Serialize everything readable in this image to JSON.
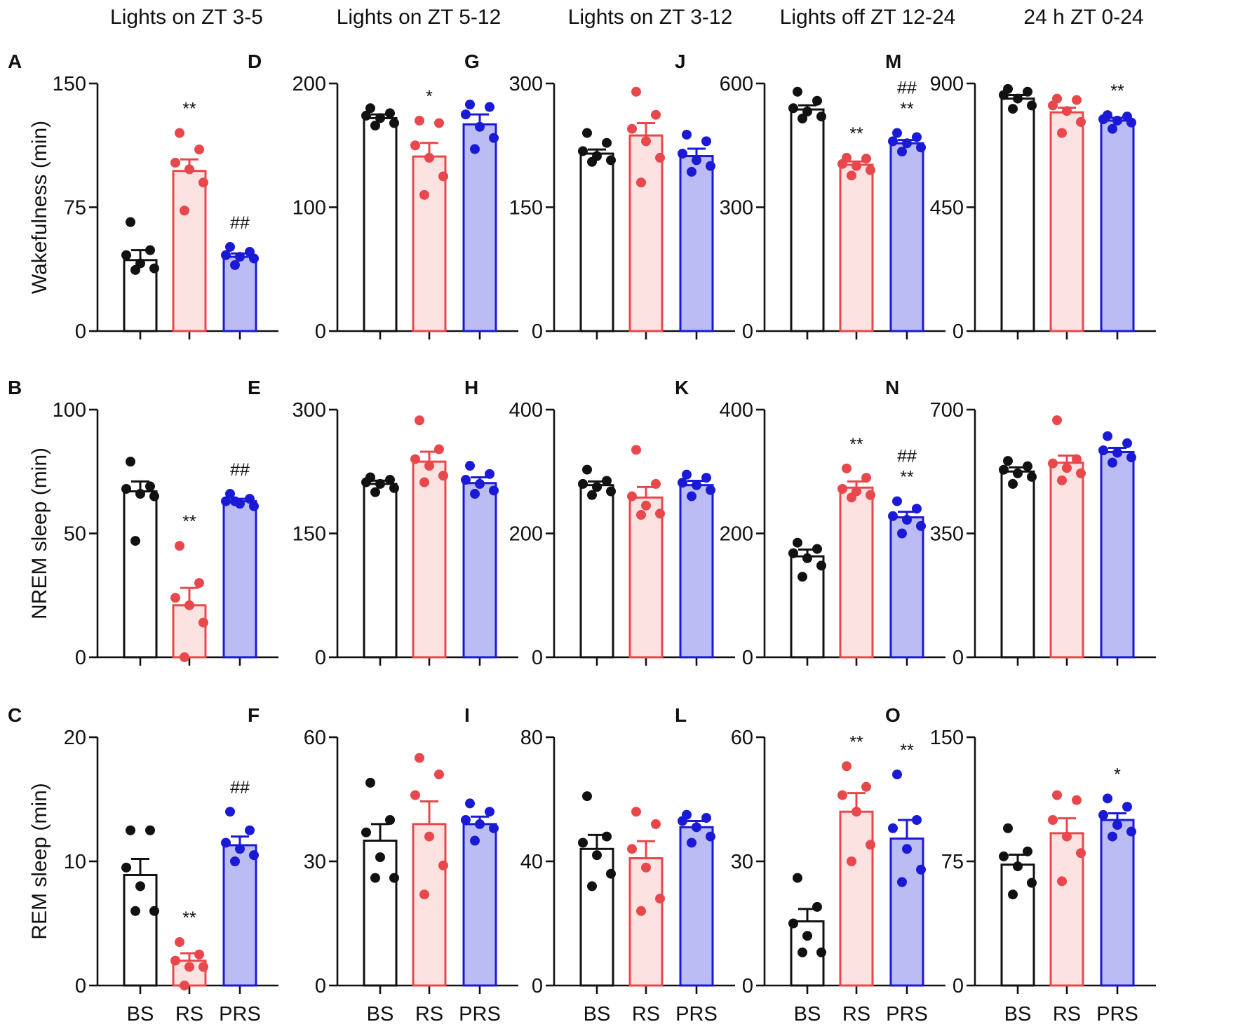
{
  "colors": {
    "BS": "#111111",
    "RS": "#e8474c",
    "PRS": "#1a1ad6"
  },
  "fills": {
    "BS": "#ffffff",
    "RS": "#fde2e2",
    "PRS": "#bcbcf4"
  },
  "chart_data": {
    "type": "bar",
    "categories": [
      "BS",
      "RS",
      "PRS"
    ],
    "column_titles": [
      "Lights on ZT 3-5",
      "Lights on ZT 5-12",
      "Lights on ZT 3-12",
      "Lights off ZT 12-24",
      "24 h ZT 0-24"
    ],
    "row_ylabels": [
      "Wakefulness (min)",
      "NREM sleep (min)",
      "REM sleep (min)"
    ],
    "panels": [
      {
        "letter": "A",
        "ylim": [
          0,
          150
        ],
        "yticks": [
          "0",
          "75",
          "150"
        ],
        "bars": [
          {
            "group": "BS",
            "mean": 43,
            "sem": 6,
            "points": [
              66,
              49,
              46,
              41,
              38,
              37
            ],
            "sig": []
          },
          {
            "group": "RS",
            "mean": 97,
            "sem": 7,
            "points": [
              120,
              110,
              102,
              98,
              90,
              73
            ],
            "sig": [
              "**"
            ]
          },
          {
            "group": "PRS",
            "mean": 45,
            "sem": 2,
            "points": [
              51,
              48,
              46,
              45,
              44,
              40
            ],
            "sig": [
              "##"
            ]
          }
        ]
      },
      {
        "letter": "B",
        "ylim": [
          0,
          100
        ],
        "yticks": [
          "0",
          "50",
          "100"
        ],
        "bars": [
          {
            "group": "BS",
            "mean": 67,
            "sem": 4,
            "points": [
              79,
              69,
              68,
              66,
              65,
              47
            ],
            "sig": []
          },
          {
            "group": "RS",
            "mean": 21,
            "sem": 7,
            "points": [
              45,
              30,
              24,
              21,
              14,
              0
            ],
            "sig": [
              "**"
            ]
          },
          {
            "group": "PRS",
            "mean": 63,
            "sem": 1,
            "points": [
              66,
              64,
              63,
              62,
              61,
              63
            ],
            "sig": [
              "##"
            ]
          }
        ]
      },
      {
        "letter": "C",
        "ylim": [
          0,
          20
        ],
        "yticks": [
          "0",
          "10",
          "20"
        ],
        "bars": [
          {
            "group": "BS",
            "mean": 8.9,
            "sem": 1.3,
            "points": [
              12.5,
              12.5,
              9.5,
              8.0,
              6.0,
              6.0
            ],
            "sig": []
          },
          {
            "group": "RS",
            "mean": 2,
            "sem": 0.6,
            "points": [
              3.5,
              2.5,
              2.0,
              1.5,
              1.5,
              0.0
            ],
            "sig": [
              "**"
            ]
          },
          {
            "group": "PRS",
            "mean": 11.3,
            "sem": 0.7,
            "points": [
              14,
              12.5,
              11.5,
              11,
              10.5,
              10
            ],
            "sig": [
              "##"
            ]
          }
        ]
      },
      {
        "letter": "D",
        "ylim": [
          0,
          200
        ],
        "yticks": [
          "0",
          "100",
          "200"
        ],
        "bars": [
          {
            "group": "BS",
            "mean": 172,
            "sem": 3,
            "points": [
              180,
              176,
              174,
              172,
              168,
              166
            ],
            "sig": []
          },
          {
            "group": "RS",
            "mean": 141,
            "sem": 11,
            "points": [
              170,
              168,
              150,
              140,
              125,
              110
            ],
            "sig": [
              "*"
            ]
          },
          {
            "group": "PRS",
            "mean": 167,
            "sem": 8,
            "points": [
              183,
              181,
              175,
              165,
              156,
              147
            ],
            "sig": []
          }
        ]
      },
      {
        "letter": "E",
        "ylim": [
          0,
          300
        ],
        "yticks": [
          "0",
          "150",
          "300"
        ],
        "bars": [
          {
            "group": "BS",
            "mean": 210,
            "sem": 4,
            "points": [
              218,
              215,
              212,
              210,
              205,
              200
            ],
            "sig": []
          },
          {
            "group": "RS",
            "mean": 237,
            "sem": 12,
            "points": [
              287,
              252,
              240,
              232,
              220,
              212
            ],
            "sig": []
          },
          {
            "group": "PRS",
            "mean": 211,
            "sem": 7,
            "points": [
              232,
              222,
              215,
              210,
              202,
              198
            ],
            "sig": []
          }
        ]
      },
      {
        "letter": "F",
        "ylim": [
          0,
          60
        ],
        "yticks": [
          "0",
          "30",
          "60"
        ],
        "bars": [
          {
            "group": "BS",
            "mean": 35,
            "sem": 4,
            "points": [
              49,
              40,
              37,
              31,
              26,
              26
            ],
            "sig": []
          },
          {
            "group": "RS",
            "mean": 39,
            "sem": 5.5,
            "points": [
              55,
              51,
              46,
              36,
              29,
              22
            ],
            "sig": []
          },
          {
            "group": "PRS",
            "mean": 39,
            "sem": 1.8,
            "points": [
              44,
              42,
              40,
              39,
              38,
              35
            ],
            "sig": []
          }
        ]
      },
      {
        "letter": "G",
        "ylim": [
          0,
          300
        ],
        "yticks": [
          "0",
          "150",
          "300"
        ],
        "bars": [
          {
            "group": "BS",
            "mean": 215,
            "sem": 5,
            "points": [
              240,
              228,
              218,
              212,
              207,
              205
            ],
            "sig": []
          },
          {
            "group": "RS",
            "mean": 237,
            "sem": 15,
            "points": [
              290,
              262,
              245,
              230,
              210,
              180
            ],
            "sig": []
          },
          {
            "group": "PRS",
            "mean": 212,
            "sem": 9,
            "points": [
              238,
              230,
              215,
              207,
              200,
              193
            ],
            "sig": []
          }
        ]
      },
      {
        "letter": "H",
        "ylim": [
          0,
          400
        ],
        "yticks": [
          "0",
          "200",
          "400"
        ],
        "bars": [
          {
            "group": "BS",
            "mean": 278,
            "sem": 6,
            "points": [
              303,
              285,
              280,
              275,
              268,
              262
            ],
            "sig": []
          },
          {
            "group": "RS",
            "mean": 258,
            "sem": 17,
            "points": [
              335,
              280,
              260,
              245,
              232,
              230
            ],
            "sig": []
          },
          {
            "group": "PRS",
            "mean": 278,
            "sem": 7,
            "points": [
              295,
              290,
              282,
              278,
              270,
              260
            ],
            "sig": []
          }
        ]
      },
      {
        "letter": "I",
        "ylim": [
          0,
          80
        ],
        "yticks": [
          "0",
          "40",
          "80"
        ],
        "bars": [
          {
            "group": "BS",
            "mean": 44,
            "sem": 4.5,
            "points": [
              61,
              48,
              46,
              42,
              36,
              32
            ],
            "sig": []
          },
          {
            "group": "RS",
            "mean": 41,
            "sem": 5.5,
            "points": [
              56,
              52,
              44,
              38,
              28,
              24
            ],
            "sig": []
          },
          {
            "group": "PRS",
            "mean": 51,
            "sem": 2,
            "points": [
              55,
              54,
              53,
              51,
              48,
              46
            ],
            "sig": []
          }
        ]
      },
      {
        "letter": "J",
        "ylim": [
          0,
          600
        ],
        "yticks": [
          "0",
          "300",
          "600"
        ],
        "bars": [
          {
            "group": "BS",
            "mean": 537,
            "sem": 10,
            "points": [
              580,
              558,
              540,
              532,
              520,
              515
            ],
            "sig": []
          },
          {
            "group": "RS",
            "mean": 403,
            "sem": 8,
            "points": [
              420,
              418,
              405,
              400,
              390,
              377
            ],
            "sig": [
              "**"
            ]
          },
          {
            "group": "PRS",
            "mean": 455,
            "sem": 8,
            "points": [
              480,
              470,
              460,
              455,
              445,
              435
            ],
            "sig": [
              "**",
              "##"
            ]
          }
        ]
      },
      {
        "letter": "K",
        "ylim": [
          0,
          400
        ],
        "yticks": [
          "0",
          "200",
          "400"
        ],
        "bars": [
          {
            "group": "BS",
            "mean": 163,
            "sem": 11,
            "points": [
              185,
              175,
              168,
              160,
              148,
              130
            ],
            "sig": []
          },
          {
            "group": "RS",
            "mean": 274,
            "sem": 10,
            "points": [
              305,
              290,
              272,
              268,
              262,
              258
            ],
            "sig": [
              "**"
            ]
          },
          {
            "group": "PRS",
            "mean": 226,
            "sem": 9,
            "points": [
              252,
              240,
              228,
              222,
              212,
              200
            ],
            "sig": [
              "**",
              "##"
            ]
          }
        ]
      },
      {
        "letter": "L",
        "ylim": [
          0,
          60
        ],
        "yticks": [
          "0",
          "30",
          "60"
        ],
        "bars": [
          {
            "group": "BS",
            "mean": 15.5,
            "sem": 3,
            "points": [
              26,
              19,
              15,
              12,
              8,
              8
            ],
            "sig": []
          },
          {
            "group": "RS",
            "mean": 42,
            "sem": 4.5,
            "points": [
              53,
              48,
              46,
              42,
              34,
              30
            ],
            "sig": [
              "**"
            ]
          },
          {
            "group": "PRS",
            "mean": 35.5,
            "sem": 4.5,
            "points": [
              51,
              40,
              38,
              33,
              28,
              25
            ],
            "sig": [
              "**"
            ]
          }
        ]
      },
      {
        "letter": "M",
        "ylim": [
          0,
          900
        ],
        "yticks": [
          "0",
          "450",
          "900"
        ],
        "bars": [
          {
            "group": "BS",
            "mean": 845,
            "sem": 13,
            "points": [
              880,
              870,
              858,
              845,
              820,
              808
            ],
            "sig": []
          },
          {
            "group": "RS",
            "mean": 795,
            "sem": 17,
            "points": [
              845,
              840,
              820,
              800,
              760,
              720
            ],
            "sig": []
          },
          {
            "group": "PRS",
            "mean": 765,
            "sem": 10,
            "points": [
              785,
              780,
              770,
              765,
              758,
              735
            ],
            "sig": [
              "**"
            ]
          }
        ]
      },
      {
        "letter": "N",
        "ylim": [
          0,
          700
        ],
        "yticks": [
          "0",
          "350",
          "700"
        ],
        "bars": [
          {
            "group": "BS",
            "mean": 525,
            "sem": 12,
            "points": [
              555,
              540,
              530,
              520,
              510,
              490
            ],
            "sig": []
          },
          {
            "group": "RS",
            "mean": 550,
            "sem": 20,
            "points": [
              670,
              560,
              548,
              535,
              520,
              500
            ],
            "sig": []
          },
          {
            "group": "PRS",
            "mean": 580,
            "sem": 12,
            "points": [
              625,
              605,
              585,
              578,
              565,
              550
            ],
            "sig": []
          }
        ]
      },
      {
        "letter": "O",
        "ylim": [
          0,
          150
        ],
        "yticks": [
          "0",
          "75",
          "150"
        ],
        "bars": [
          {
            "group": "BS",
            "mean": 73,
            "sem": 6,
            "points": [
              95,
              81,
              78,
              72,
              62,
              55
            ],
            "sig": []
          },
          {
            "group": "RS",
            "mean": 92,
            "sem": 9,
            "points": [
              115,
              112,
              100,
              90,
              80,
              63
            ],
            "sig": []
          },
          {
            "group": "PRS",
            "mean": 100,
            "sem": 4,
            "points": [
              113,
              108,
              103,
              97,
              93,
              90
            ],
            "sig": [
              "*"
            ]
          }
        ]
      }
    ]
  }
}
